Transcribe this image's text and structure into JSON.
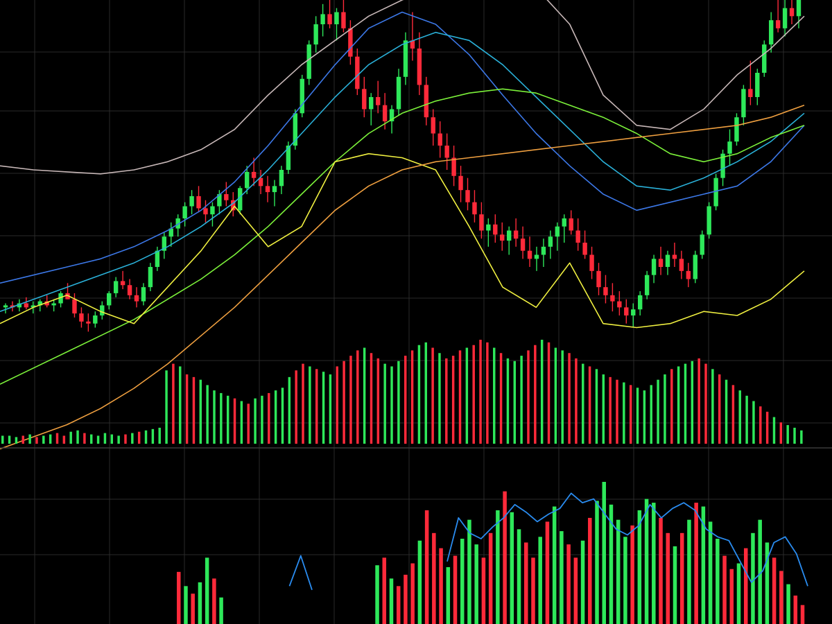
{
  "colors": {
    "background": "#000000",
    "grid": "#2a2a2a",
    "up": "#2ee85a",
    "down": "#ff2a3a",
    "ma_white": "#c8b8b8",
    "ma_blue": "#3c78e8",
    "ma_cyan": "#2ab0d8",
    "ma_green": "#7cf23a",
    "ma_yellow": "#f0f040",
    "ma_orange": "#f0a040",
    "osc_line": "#2a8cf0"
  },
  "chart_data": [
    {
      "type": "candlestick",
      "panel": "price",
      "candles": [
        [
          100,
          102,
          97,
          101
        ],
        [
          101,
          103,
          98,
          100
        ],
        [
          100,
          104,
          98,
          102
        ],
        [
          102,
          105,
          99,
          100
        ],
        [
          100,
          103,
          97,
          101
        ],
        [
          101,
          104,
          98,
          103
        ],
        [
          103,
          106,
          100,
          101
        ],
        [
          101,
          104,
          98,
          102
        ],
        [
          102,
          108,
          100,
          107
        ],
        [
          107,
          112,
          104,
          104
        ],
        [
          104,
          107,
          95,
          97
        ],
        [
          97,
          100,
          90,
          93
        ],
        [
          93,
          97,
          88,
          92
        ],
        [
          92,
          98,
          90,
          96
        ],
        [
          96,
          103,
          94,
          101
        ],
        [
          101,
          108,
          99,
          107
        ],
        [
          107,
          115,
          105,
          113
        ],
        [
          113,
          118,
          109,
          111
        ],
        [
          111,
          114,
          104,
          106
        ],
        [
          106,
          110,
          100,
          103
        ],
        [
          103,
          112,
          101,
          110
        ],
        [
          110,
          122,
          108,
          120
        ],
        [
          120,
          130,
          118,
          128
        ],
        [
          128,
          137,
          124,
          135
        ],
        [
          135,
          142,
          130,
          139
        ],
        [
          139,
          146,
          135,
          144
        ],
        [
          144,
          152,
          140,
          150
        ],
        [
          150,
          158,
          146,
          155
        ],
        [
          155,
          160,
          147,
          149
        ],
        [
          149,
          153,
          142,
          146
        ],
        [
          146,
          152,
          140,
          150
        ],
        [
          150,
          158,
          146,
          156
        ],
        [
          156,
          162,
          150,
          153
        ],
        [
          153,
          157,
          145,
          148
        ],
        [
          148,
          160,
          146,
          159
        ],
        [
          159,
          170,
          156,
          167
        ],
        [
          167,
          174,
          160,
          164
        ],
        [
          164,
          168,
          156,
          160
        ],
        [
          160,
          165,
          152,
          157
        ],
        [
          157,
          163,
          150,
          160
        ],
        [
          160,
          170,
          156,
          168
        ],
        [
          168,
          182,
          166,
          180
        ],
        [
          180,
          198,
          178,
          196
        ],
        [
          196,
          215,
          194,
          213
        ],
        [
          213,
          232,
          210,
          230
        ],
        [
          230,
          244,
          226,
          240
        ],
        [
          240,
          250,
          234,
          245
        ],
        [
          245,
          252,
          238,
          240
        ],
        [
          240,
          248,
          232,
          246
        ],
        [
          246,
          252,
          236,
          238
        ],
        [
          238,
          242,
          220,
          224
        ],
        [
          224,
          228,
          205,
          208
        ],
        [
          208,
          214,
          194,
          198
        ],
        [
          198,
          206,
          190,
          204
        ],
        [
          204,
          212,
          196,
          200
        ],
        [
          200,
          206,
          188,
          192
        ],
        [
          192,
          200,
          186,
          198
        ],
        [
          198,
          218,
          195,
          214
        ],
        [
          214,
          236,
          210,
          232
        ],
        [
          232,
          246,
          222,
          228
        ],
        [
          228,
          236,
          205,
          210
        ],
        [
          210,
          214,
          190,
          194
        ],
        [
          194,
          198,
          180,
          186
        ],
        [
          186,
          192,
          174,
          180
        ],
        [
          180,
          186,
          168,
          174
        ],
        [
          174,
          180,
          160,
          165
        ],
        [
          165,
          170,
          152,
          158
        ],
        [
          158,
          164,
          148,
          152
        ],
        [
          152,
          158,
          142,
          146
        ],
        [
          146,
          152,
          134,
          138
        ],
        [
          138,
          144,
          130,
          141
        ],
        [
          141,
          146,
          132,
          136
        ],
        [
          136,
          142,
          128,
          133
        ],
        [
          133,
          140,
          126,
          138
        ],
        [
          138,
          144,
          130,
          134
        ],
        [
          134,
          140,
          124,
          128
        ],
        [
          128,
          135,
          120,
          124
        ],
        [
          124,
          130,
          118,
          126
        ],
        [
          126,
          134,
          120,
          130
        ],
        [
          130,
          138,
          124,
          135
        ],
        [
          135,
          142,
          128,
          140
        ],
        [
          140,
          146,
          132,
          144
        ],
        [
          144,
          148,
          136,
          138
        ],
        [
          138,
          144,
          128,
          132
        ],
        [
          132,
          138,
          124,
          126
        ],
        [
          126,
          130,
          114,
          118
        ],
        [
          118,
          122,
          106,
          110
        ],
        [
          110,
          116,
          102,
          106
        ],
        [
          106,
          112,
          98,
          103
        ],
        [
          103,
          108,
          96,
          100
        ],
        [
          100,
          104,
          92,
          96
        ],
        [
          96,
          102,
          90,
          99
        ],
        [
          99,
          108,
          96,
          106
        ],
        [
          106,
          118,
          104,
          116
        ],
        [
          116,
          126,
          112,
          124
        ],
        [
          124,
          130,
          116,
          120
        ],
        [
          120,
          128,
          116,
          126
        ],
        [
          126,
          132,
          120,
          124
        ],
        [
          124,
          128,
          114,
          118
        ],
        [
          118,
          122,
          110,
          114
        ],
        [
          114,
          128,
          112,
          126
        ],
        [
          126,
          138,
          124,
          136
        ],
        [
          136,
          152,
          134,
          150
        ],
        [
          150,
          166,
          148,
          164
        ],
        [
          164,
          178,
          160,
          176
        ],
        [
          176,
          188,
          170,
          182
        ],
        [
          182,
          196,
          180,
          194
        ],
        [
          194,
          210,
          190,
          208
        ],
        [
          208,
          222,
          200,
          204
        ],
        [
          204,
          218,
          200,
          216
        ],
        [
          216,
          232,
          214,
          230
        ],
        [
          230,
          246,
          226,
          242
        ],
        [
          242,
          252,
          236,
          238
        ],
        [
          238,
          252,
          234,
          248
        ],
        [
          248,
          256,
          240,
          244
        ],
        [
          244,
          255,
          238,
          252
        ]
      ],
      "moving_averages": [
        {
          "color_key": "ma_white",
          "values": [
            170,
            168,
            167,
            166,
            168,
            172,
            178,
            188,
            205,
            220,
            232,
            244,
            252,
            258,
            262,
            262,
            258,
            240,
            205,
            190,
            188,
            198,
            215,
            228,
            244
          ]
        },
        {
          "color_key": "ma_blue",
          "values": [
            112,
            116,
            120,
            124,
            130,
            138,
            148,
            162,
            180,
            200,
            220,
            238,
            246,
            240,
            225,
            205,
            186,
            170,
            156,
            148,
            152,
            156,
            160,
            172,
            190
          ]
        },
        {
          "color_key": "ma_cyan",
          "values": [
            98,
            104,
            110,
            116,
            122,
            130,
            140,
            152,
            168,
            186,
            204,
            220,
            230,
            236,
            232,
            220,
            204,
            188,
            172,
            160,
            158,
            164,
            172,
            182,
            196
          ]
        },
        {
          "color_key": "ma_green",
          "values": [
            62,
            70,
            78,
            86,
            94,
            104,
            114,
            126,
            140,
            156,
            172,
            186,
            196,
            202,
            206,
            208,
            206,
            200,
            194,
            186,
            176,
            172,
            176,
            184,
            190
          ]
        },
        {
          "color_key": "ma_yellow",
          "values": [
            92,
            100,
            106,
            98,
            92,
            110,
            128,
            150,
            130,
            140,
            172,
            176,
            174,
            168,
            140,
            110,
            100,
            122,
            92,
            90,
            92,
            98,
            96,
            104,
            118
          ]
        },
        {
          "color_key": "ma_orange",
          "values": [
            30,
            36,
            42,
            50,
            60,
            72,
            86,
            100,
            116,
            132,
            148,
            160,
            168,
            172,
            174,
            176,
            178,
            180,
            182,
            184,
            186,
            188,
            190,
            194,
            200
          ]
        }
      ]
    },
    {
      "type": "bar",
      "panel": "volume",
      "values": [
        6,
        6,
        5,
        6,
        7,
        5,
        6,
        7,
        8,
        6,
        9,
        10,
        8,
        7,
        6,
        8,
        7,
        6,
        7,
        8,
        9,
        10,
        11,
        12,
        55,
        60,
        58,
        52,
        50,
        48,
        44,
        40,
        38,
        36,
        34,
        32,
        30,
        34,
        36,
        38,
        40,
        42,
        50,
        55,
        60,
        58,
        56,
        54,
        52,
        58,
        62,
        66,
        70,
        72,
        68,
        64,
        60,
        58,
        62,
        66,
        70,
        74,
        76,
        72,
        68,
        64,
        66,
        70,
        72,
        74,
        78,
        76,
        72,
        68,
        64,
        62,
        66,
        70,
        74,
        78,
        76,
        72,
        70,
        68,
        64,
        60,
        58,
        56,
        52,
        50,
        48,
        46,
        44,
        42,
        40,
        44,
        48,
        52,
        56,
        58,
        60,
        62,
        64,
        60,
        56,
        52,
        48,
        44,
        40,
        36,
        32,
        28,
        24,
        20,
        16,
        14,
        12,
        10
      ],
      "directions": "gggrgrggrrggrgggggrgrggggrgrrgggggrgrggrgggrrgrggrrrrgrrgggrrggrgrrrgrrrgrgggrrgrggrrgrggrrgrgggggrgggrrgrgrgggrrgrgggrrgrr"
    },
    {
      "type": "bar",
      "panel": "oscillator",
      "values": [
        0,
        0,
        0,
        0,
        0,
        0,
        0,
        0,
        0,
        0,
        0,
        0,
        0,
        0,
        0,
        0,
        0,
        0,
        0,
        0,
        0,
        0,
        0,
        0,
        0,
        0,
        0,
        0,
        0,
        0,
        0,
        0,
        0,
        0,
        55,
        40,
        32,
        44,
        70,
        48,
        28,
        0,
        0,
        0,
        0,
        0,
        0,
        0,
        0,
        0,
        0,
        0,
        0,
        0,
        0,
        0,
        0,
        0,
        0,
        0,
        0,
        0,
        62,
        70,
        48,
        40,
        52,
        64,
        88,
        120,
        96,
        80,
        60,
        72,
        90,
        110,
        84,
        70,
        96,
        120,
        140,
        118,
        100,
        86,
        70,
        92,
        108,
        124,
        98,
        84,
        70,
        88,
        112,
        130,
        150,
        126,
        110,
        92,
        104,
        120,
        132,
        128,
        112,
        96,
        82,
        96,
        110,
        128,
        124,
        108,
        90,
        72,
        58,
        64,
        80,
        96,
        110,
        86,
        70,
        56,
        42,
        30,
        20
      ],
      "directions": "gggrgrggrrggrgggggrgrggggrgrrgggggrgrggrgggrrgrggrrrrgrrgggrrggrgrrrgrrrgrgggrrgrggrrgrggrrgrgggggrgggrrgrgrgggrrgrgggrrgrr",
      "line": [
        0,
        0,
        0,
        0,
        0,
        0,
        0,
        0,
        0,
        0,
        40,
        72,
        36,
        0,
        0,
        0,
        0,
        0,
        0,
        0,
        0,
        0,
        0,
        0,
        66,
        112,
        96,
        90,
        102,
        112,
        126,
        118,
        108,
        116,
        122,
        138,
        128,
        132,
        116,
        100,
        94,
        104,
        126,
        112,
        122,
        128,
        120,
        100,
        92,
        88,
        66,
        44,
        56,
        86,
        92,
        74,
        40
      ]
    }
  ]
}
